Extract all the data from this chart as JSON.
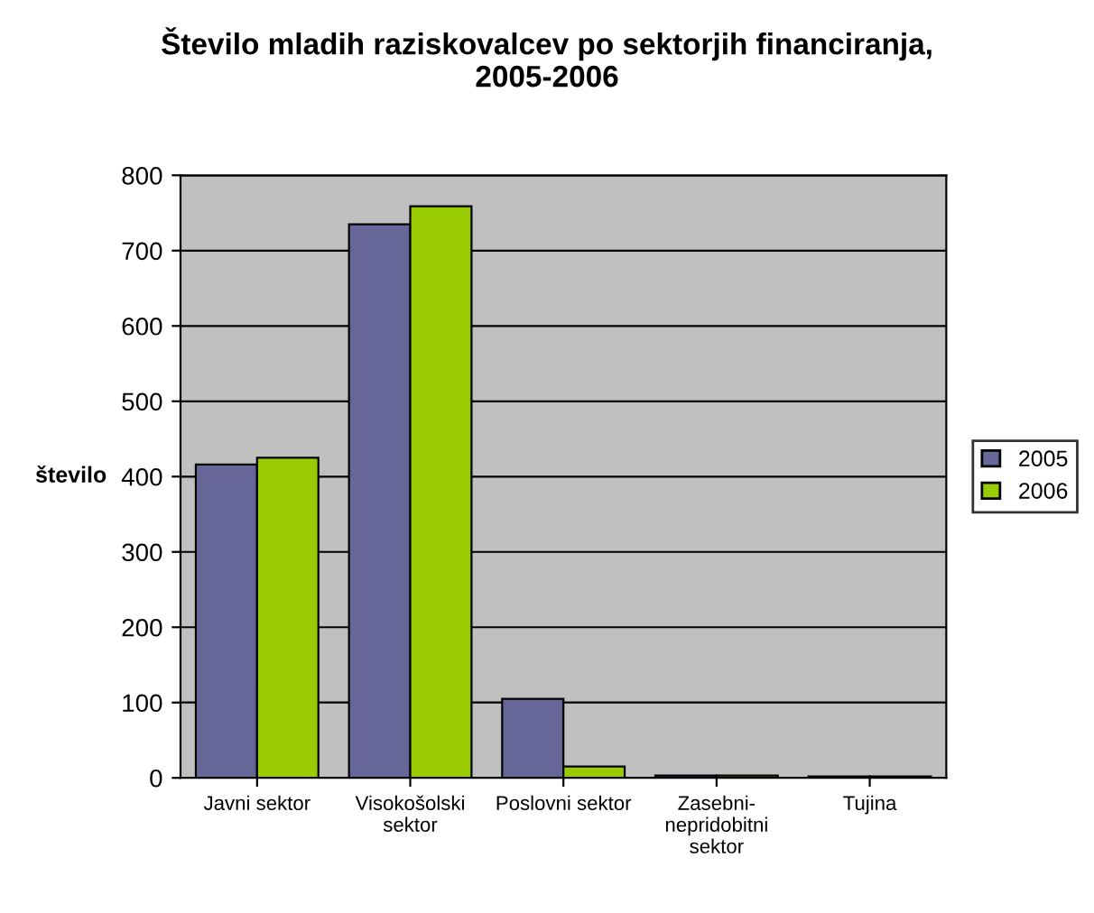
{
  "chart_data": {
    "type": "bar",
    "title": "Število mladih raziskovalcev po sektorjih financiranja,\n2005-2006",
    "ylabel": "število",
    "categories": [
      "Javni sektor",
      "Visokošolski\nsektor",
      "Poslovni sektor",
      "Zasebni-\nnepridobitni\nsektor",
      "Tujina"
    ],
    "series": [
      {
        "name": "2005",
        "color": "#666699",
        "values": [
          416,
          735,
          105,
          3,
          2
        ]
      },
      {
        "name": "2006",
        "color": "#99cc00",
        "values": [
          425,
          759,
          15,
          3,
          2
        ]
      }
    ],
    "ylim": [
      0,
      800
    ],
    "yticks": [
      0,
      100,
      200,
      300,
      400,
      500,
      600,
      700,
      800
    ],
    "grid": "y",
    "legend": "right"
  }
}
